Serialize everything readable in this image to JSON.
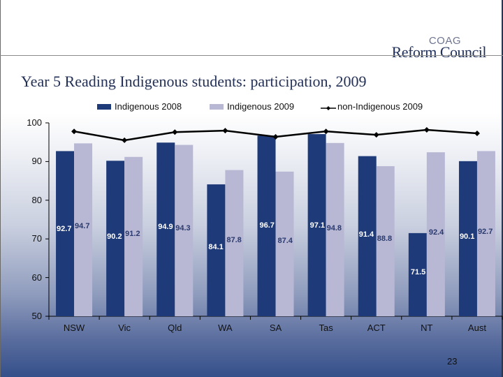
{
  "header": {
    "logo_small": "COAG",
    "logo_main": "Reform Council"
  },
  "slide": {
    "title": "Year 5 Reading Indigenous students: participation, 2009",
    "page_number": "23"
  },
  "legend": {
    "items": [
      {
        "label": "Indigenous 2008",
        "color": "#1f3a78",
        "type": "bar"
      },
      {
        "label": "Indigenous 2009",
        "color": "#b8b8d4",
        "type": "bar"
      },
      {
        "label": "non-Indigenous 2009",
        "color": "#000000",
        "type": "line"
      }
    ]
  },
  "colors": {
    "series_2008": "#1f3a78",
    "series_2009": "#b8b8d4",
    "line": "#000000",
    "label_2008": "#ffffff",
    "label_2009": "#2a3a6e"
  },
  "chart_data": {
    "type": "bar",
    "title": "Year 5 Reading Indigenous students: participation, 2009",
    "xlabel": "",
    "ylabel": "",
    "ylim": [
      50,
      100
    ],
    "yticks": [
      50,
      60,
      70,
      80,
      90,
      100
    ],
    "grid": false,
    "legend_position": "top",
    "categories": [
      "NSW",
      "Vic",
      "Qld",
      "WA",
      "SA",
      "Tas",
      "ACT",
      "NT",
      "Aust"
    ],
    "series": [
      {
        "name": "Indigenous 2008",
        "type": "bar",
        "values": [
          92.7,
          90.2,
          94.9,
          84.1,
          96.7,
          97.1,
          91.4,
          71.5,
          90.1
        ]
      },
      {
        "name": "Indigenous 2009",
        "type": "bar",
        "values": [
          94.7,
          91.2,
          94.3,
          87.8,
          87.4,
          94.8,
          88.8,
          92.4,
          92.7
        ]
      },
      {
        "name": "non-Indigenous 2009",
        "type": "line",
        "values": [
          97.8,
          95.5,
          97.6,
          98.0,
          96.4,
          97.8,
          96.9,
          98.2,
          97.3
        ]
      }
    ],
    "data_labels": {
      "Indigenous 2008": [
        "92.7",
        "90.2",
        "94.9",
        "84.1",
        "96.7",
        "97.1",
        "91.4",
        "71.5",
        "90.1"
      ],
      "Indigenous 2009": [
        "94.7",
        "91.2",
        "94.3",
        "87.8",
        "87.4",
        "94.8",
        "88.8",
        "92.4",
        "92.7"
      ]
    }
  }
}
